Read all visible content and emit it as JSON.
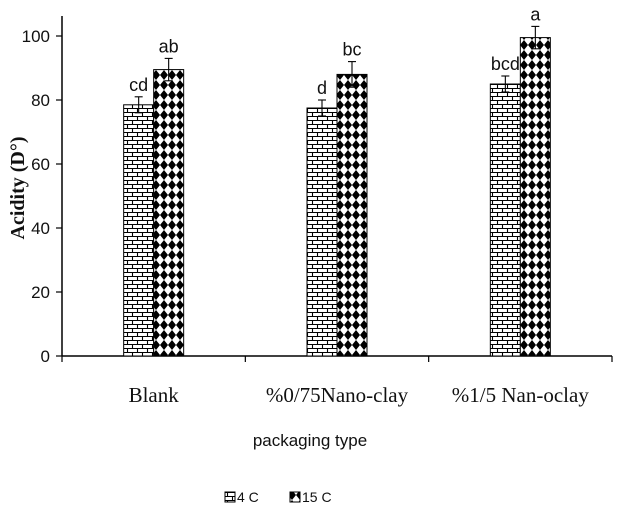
{
  "chart_data": {
    "type": "bar",
    "title": "",
    "xlabel": "packaging type",
    "ylabel": "Acidity (D°)",
    "categories": [
      "Blank",
      "%0/75Nano-clay",
      "%1/5 Nan-oclay"
    ],
    "ylim": [
      0,
      100
    ],
    "yticks": [
      0,
      20,
      40,
      60,
      80,
      100
    ],
    "grid": false,
    "legend_position": "bottom",
    "series": [
      {
        "name": "4 C",
        "pattern": "brick",
        "values": [
          78.5,
          77.5,
          85
        ],
        "errors": [
          2.5,
          2.5,
          2.5
        ],
        "labels": [
          "cd",
          "d",
          "bcd"
        ]
      },
      {
        "name": "15 C",
        "pattern": "diamond",
        "values": [
          89.5,
          88,
          99.5
        ],
        "errors": [
          3.5,
          4,
          3.5
        ],
        "labels": [
          "ab",
          "bc",
          "a"
        ]
      }
    ]
  },
  "colors": {
    "bar_fill": "#ffffff",
    "pattern_ink": "#000000",
    "axis": "#000000"
  }
}
